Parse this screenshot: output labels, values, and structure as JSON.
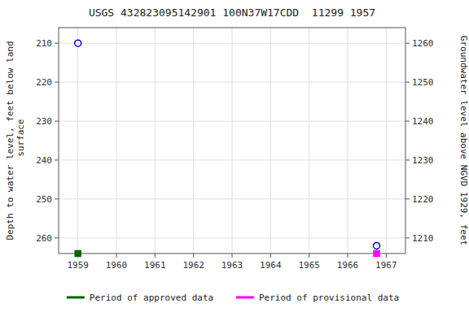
{
  "chart_data": {
    "type": "scatter",
    "title": "USGS 432823095142901 100N37W17CDD  11299 1957",
    "y_label": "Depth to water level, feet below land\n surface",
    "y2_label": "Groundwater level above NGVD 1929, feet",
    "xlim": [
      1958.5,
      1967.5
    ],
    "xticks": [
      1959,
      1960,
      1961,
      1962,
      1963,
      1964,
      1965,
      1966,
      1967
    ],
    "ylim": [
      264,
      206
    ],
    "yticks": [
      210,
      220,
      230,
      240,
      250,
      260
    ],
    "y2lim": [
      1206,
      1264
    ],
    "y2ticks": [
      1210,
      1220,
      1230,
      1240,
      1250,
      1260
    ],
    "grid": true,
    "legend": "bottom",
    "series": [
      {
        "type": "scatter",
        "color": "#0000cd",
        "marker": "circle",
        "x": [
          1959.0
        ],
        "values": [
          210.0
        ]
      },
      {
        "type": "scatter",
        "color": "#0000cd",
        "marker": "circle",
        "x": [
          1966.75
        ],
        "values": [
          262.0
        ]
      },
      {
        "type": "period",
        "name": "Period of approved data",
        "color": "#006400",
        "marker": "square",
        "x": [
          1959.0
        ]
      },
      {
        "type": "period",
        "name": "Period of provisional data",
        "color": "#ff00ff",
        "marker": "square",
        "x": [
          1966.75
        ]
      }
    ]
  }
}
